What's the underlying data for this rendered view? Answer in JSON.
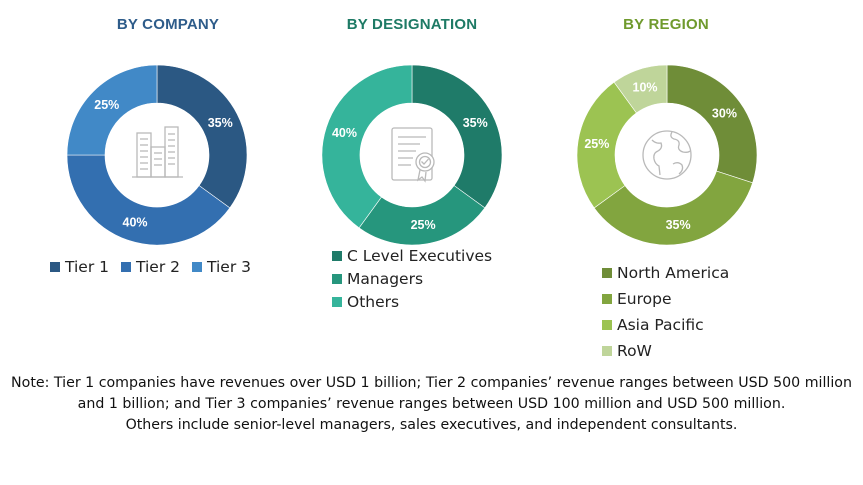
{
  "colors": {
    "company_title": "#2e5c8a",
    "designation_title": "#1e7a65",
    "region_title": "#6f9a2d",
    "icon_stroke": "#b9b9b9"
  },
  "chart_data": [
    {
      "type": "pie",
      "title": "BY COMPANY",
      "center_icon": "buildings-icon",
      "legend_layout": "inline",
      "slices": [
        {
          "label": "Tier 1",
          "value": 35,
          "value_label": "35%",
          "color": "#2b5883"
        },
        {
          "label": "Tier 2",
          "value": 40,
          "value_label": "40%",
          "color": "#336fb0"
        },
        {
          "label": "Tier 3",
          "value": 25,
          "value_label": "25%",
          "color": "#4189c7"
        }
      ]
    },
    {
      "type": "pie",
      "title": "BY DESIGNATION",
      "center_icon": "certificate-icon",
      "legend_layout": "stacked",
      "slices": [
        {
          "label": "C Level Executives",
          "value": 35,
          "value_label": "35%",
          "color": "#1f7b69"
        },
        {
          "label": "Managers",
          "value": 25,
          "value_label": "25%",
          "color": "#26967d"
        },
        {
          "label": "Others",
          "value": 40,
          "value_label": "40%",
          "color": "#35b49b"
        }
      ]
    },
    {
      "type": "pie",
      "title": "BY REGION",
      "center_icon": "globe-icon",
      "legend_layout": "stacked",
      "slices": [
        {
          "label": "North America",
          "value": 30,
          "value_label": "30%",
          "color": "#6f8d38"
        },
        {
          "label": "Europe",
          "value": 35,
          "value_label": "35%",
          "color": "#82a53f"
        },
        {
          "label": "Asia Pacific",
          "value": 25,
          "value_label": "25%",
          "color": "#9cc352"
        },
        {
          "label": "RoW",
          "value": 10,
          "value_label": "10%",
          "color": "#bfd59a"
        }
      ]
    }
  ],
  "note": {
    "line1": "Note: Tier 1 companies have revenues over USD 1 billion; Tier 2 companies’ revenue ranges between USD 500 million and 1 billion; and Tier 3 companies’ revenue ranges between USD 100 million and USD 500 million.",
    "line2": "Others include senior-level managers, sales executives, and independent consultants."
  }
}
